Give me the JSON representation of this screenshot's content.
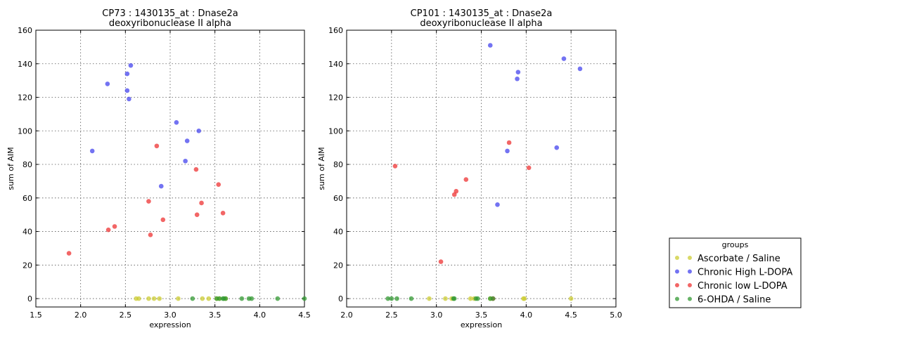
{
  "chart_data": [
    {
      "type": "scatter",
      "title": "CP73 : 1430135_at : Dnase2a",
      "subtitle": "deoxyribonuclease II alpha",
      "xlabel": "expression",
      "ylabel": "sum of AIM",
      "xlim": [
        1.5,
        4.5
      ],
      "ylim": [
        -5,
        160
      ],
      "xticks": [
        "1.5",
        "2.0",
        "2.5",
        "3.0",
        "3.5",
        "4.0",
        "4.5"
      ],
      "yticks": [
        "0",
        "20",
        "40",
        "60",
        "80",
        "100",
        "120",
        "140",
        "160"
      ],
      "grid": true,
      "series": [
        {
          "name": "Ascorbate / Saline",
          "color": "#cccc33",
          "points": [
            [
              2.62,
              0
            ],
            [
              2.65,
              0
            ],
            [
              2.76,
              0
            ],
            [
              2.82,
              0
            ],
            [
              2.88,
              0
            ],
            [
              3.09,
              0
            ],
            [
              3.36,
              0
            ],
            [
              3.43,
              0
            ],
            [
              3.52,
              0
            ],
            [
              3.55,
              0
            ],
            [
              3.62,
              0
            ]
          ]
        },
        {
          "name": "Chronic High L-DOPA",
          "color": "#4444ee",
          "points": [
            [
              2.13,
              88
            ],
            [
              2.3,
              128
            ],
            [
              2.52,
              134
            ],
            [
              2.52,
              124
            ],
            [
              2.54,
              119
            ],
            [
              2.56,
              139
            ],
            [
              2.9,
              67
            ],
            [
              3.07,
              105
            ],
            [
              3.17,
              82
            ],
            [
              3.19,
              94
            ],
            [
              3.32,
              100
            ]
          ]
        },
        {
          "name": "Chronic low L-DOPA",
          "color": "#ee3333",
          "points": [
            [
              1.87,
              27
            ],
            [
              2.31,
              41
            ],
            [
              2.38,
              43
            ],
            [
              2.76,
              58
            ],
            [
              2.78,
              38
            ],
            [
              2.85,
              91
            ],
            [
              2.92,
              47
            ],
            [
              3.29,
              77
            ],
            [
              3.3,
              50
            ],
            [
              3.35,
              57
            ],
            [
              3.54,
              68
            ],
            [
              3.59,
              51
            ]
          ]
        },
        {
          "name": "6-OHDA / Saline",
          "color": "#339933",
          "points": [
            [
              3.25,
              0
            ],
            [
              3.52,
              0
            ],
            [
              3.55,
              0
            ],
            [
              3.59,
              0
            ],
            [
              3.6,
              0
            ],
            [
              3.62,
              0
            ],
            [
              3.8,
              0
            ],
            [
              3.88,
              0
            ],
            [
              3.91,
              0
            ],
            [
              4.2,
              0
            ],
            [
              4.5,
              0
            ]
          ]
        }
      ]
    },
    {
      "type": "scatter",
      "title": "CP101 : 1430135_at : Dnase2a",
      "subtitle": "deoxyribonuclease II alpha",
      "xlabel": "expression",
      "ylabel": "sum of AIM",
      "xlim": [
        2.0,
        5.0
      ],
      "ylim": [
        -5,
        160
      ],
      "xticks": [
        "2.0",
        "2.5",
        "3.0",
        "3.5",
        "4.0",
        "4.5",
        "5.0"
      ],
      "yticks": [
        "0",
        "20",
        "40",
        "60",
        "80",
        "100",
        "120",
        "140",
        "160"
      ],
      "grid": true,
      "series": [
        {
          "name": "Ascorbate / Saline",
          "color": "#cccc33",
          "points": [
            [
              2.92,
              0
            ],
            [
              3.1,
              0
            ],
            [
              3.17,
              0
            ],
            [
              3.38,
              0
            ],
            [
              3.42,
              0
            ],
            [
              3.6,
              0
            ],
            [
              3.97,
              0
            ],
            [
              3.98,
              0
            ],
            [
              4.5,
              0
            ]
          ]
        },
        {
          "name": "Chronic High L-DOPA",
          "color": "#4444ee",
          "points": [
            [
              3.6,
              151
            ],
            [
              3.68,
              56
            ],
            [
              3.79,
              88
            ],
            [
              3.9,
              131
            ],
            [
              3.91,
              135
            ],
            [
              4.34,
              90
            ],
            [
              4.42,
              143
            ],
            [
              4.6,
              137
            ]
          ]
        },
        {
          "name": "Chronic low L-DOPA",
          "color": "#ee3333",
          "points": [
            [
              2.54,
              79
            ],
            [
              3.05,
              22
            ],
            [
              3.2,
              62
            ],
            [
              3.22,
              64
            ],
            [
              3.33,
              71
            ],
            [
              3.63,
              0
            ],
            [
              3.81,
              93
            ],
            [
              4.03,
              78
            ]
          ]
        },
        {
          "name": "6-OHDA / Saline",
          "color": "#339933",
          "points": [
            [
              2.46,
              0
            ],
            [
              2.5,
              0
            ],
            [
              2.56,
              0
            ],
            [
              2.72,
              0
            ],
            [
              3.19,
              0
            ],
            [
              3.2,
              0
            ],
            [
              3.44,
              0
            ],
            [
              3.46,
              0
            ],
            [
              3.6,
              0
            ],
            [
              3.63,
              0
            ]
          ]
        }
      ]
    }
  ],
  "legend": {
    "title": "groups",
    "placement": "lower-right, outside plots",
    "entries": [
      {
        "label": "Ascorbate / Saline",
        "color": "#cccc33"
      },
      {
        "label": "Chronic High L-DOPA",
        "color": "#4444ee"
      },
      {
        "label": "Chronic low L-DOPA",
        "color": "#ee3333"
      },
      {
        "label": "6-OHDA / Saline",
        "color": "#339933"
      }
    ]
  }
}
